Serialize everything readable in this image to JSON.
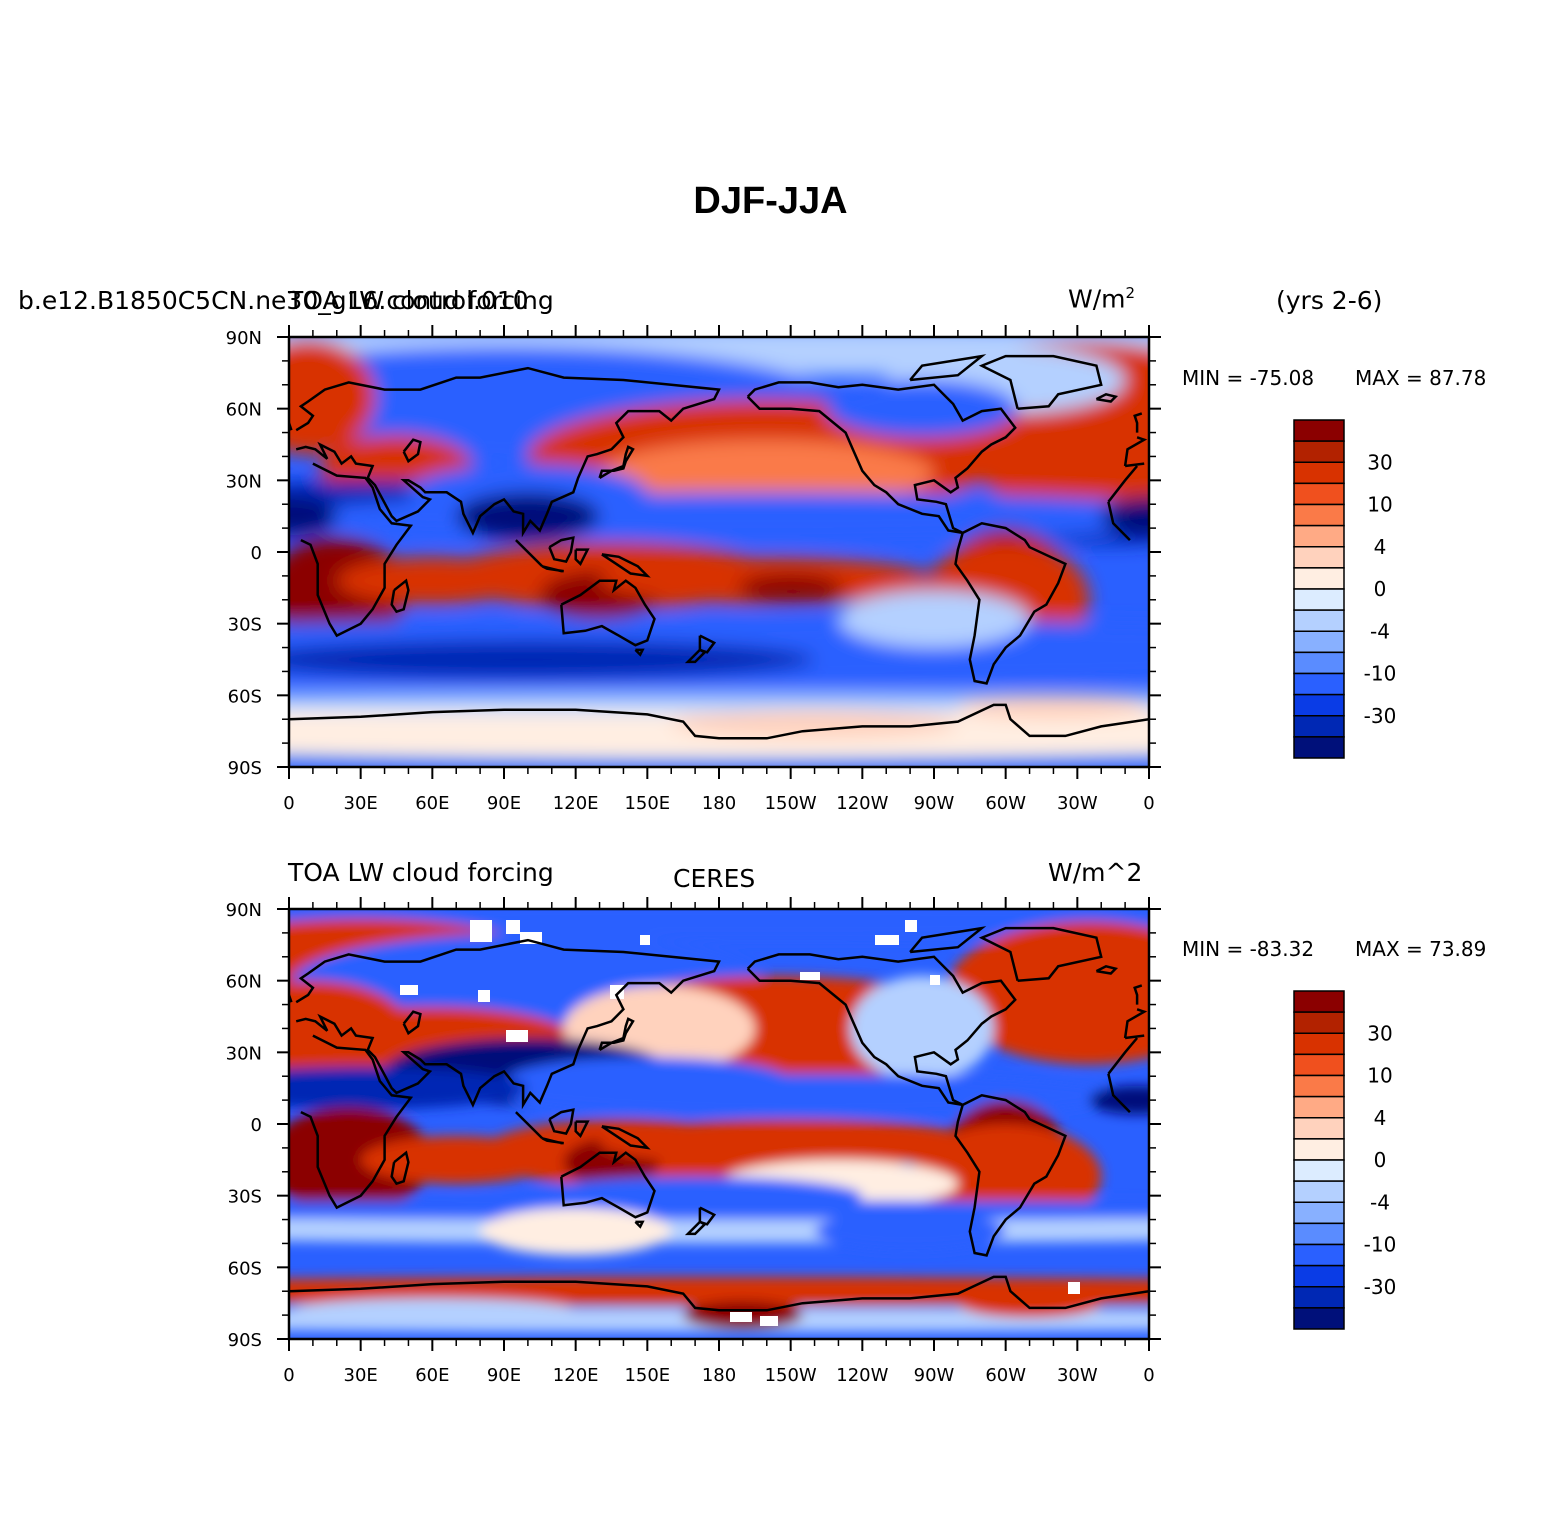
{
  "figure": {
    "title": "DJF-JJA"
  },
  "panels": [
    {
      "id": "model",
      "left_label_a": "b.e12.B1850C5CN.ne30_g16.control.010",
      "left_label_b": "TOA LW cloud forcing",
      "center_label": "",
      "units_label": "W/m",
      "units_sup": "2",
      "extra_label": "(yrs 2-6)",
      "min_label": "MIN = -75.08",
      "max_label": "MAX =  87.78",
      "min": -75.08,
      "max": 87.78
    },
    {
      "id": "obs",
      "left_label_a": "",
      "left_label_b": "TOA LW cloud forcing",
      "center_label": "CERES",
      "units_label": "W/m^2",
      "units_sup": "",
      "extra_label": "",
      "min_label": "MIN = -83.32",
      "max_label": "MAX =  73.89",
      "min": -83.32,
      "max": 73.89
    }
  ],
  "axes": {
    "lat_ticks": [
      "90N",
      "60N",
      "30N",
      "0",
      "30S",
      "60S",
      "90S"
    ],
    "lon_ticks": [
      "0",
      "30E",
      "60E",
      "90E",
      "120E",
      "150E",
      "180",
      "150W",
      "120W",
      "90W",
      "60W",
      "30W",
      "0"
    ]
  },
  "colorbar": {
    "labels": [
      "30",
      "10",
      "4",
      "0",
      "-4",
      "-10",
      "-30"
    ],
    "colors": [
      "#8b0000",
      "#b22200",
      "#d83200",
      "#f0501e",
      "#fa7a48",
      "#ffaa85",
      "#ffd2bd",
      "#ffeee2",
      "#dcecff",
      "#b4d0ff",
      "#88b0ff",
      "#5a8cff",
      "#2a60ff",
      "#0a3ce6",
      "#0028b4",
      "#00107a"
    ]
  },
  "chart_data": {
    "type": "heatmap",
    "title": "DJF-JJA",
    "xlabel": "",
    "ylabel": "",
    "xlim": [
      0,
      360
    ],
    "ylim": [
      -90,
      90
    ],
    "x_ticks": [
      "0",
      "30E",
      "60E",
      "90E",
      "120E",
      "150E",
      "180",
      "150W",
      "120W",
      "90W",
      "60W",
      "30W",
      "0"
    ],
    "y_ticks": [
      "90N",
      "60N",
      "30N",
      "0",
      "30S",
      "60S",
      "90S"
    ],
    "levels": [
      -50,
      -40,
      -30,
      -20,
      -10,
      -6,
      -4,
      -2,
      0,
      2,
      4,
      6,
      10,
      20,
      30,
      40
    ],
    "units": "W/m^2",
    "panels": [
      {
        "name": "",
        "min": -75.08,
        "max": 87.78
      },
      {
        "name": "CERES",
        "min": -83.32,
        "max": 73.89
      }
    ]
  }
}
